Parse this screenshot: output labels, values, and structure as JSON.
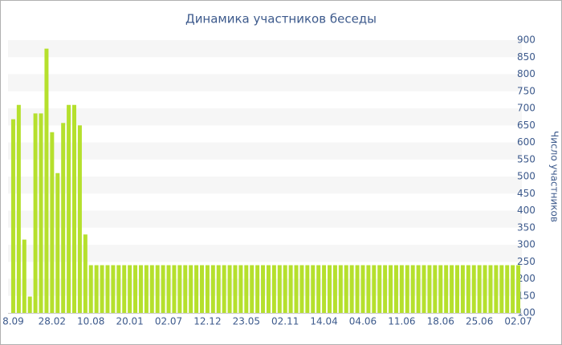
{
  "chart_data": {
    "type": "bar",
    "title": "Динамика участников беседы",
    "y_axis_label": "Число участников",
    "categories": [
      "8.09",
      null,
      null,
      null,
      null,
      null,
      null,
      "28.02",
      null,
      null,
      null,
      null,
      null,
      null,
      "10.08",
      null,
      null,
      null,
      null,
      null,
      null,
      "20.01",
      null,
      null,
      null,
      null,
      null,
      null,
      "02.07",
      null,
      null,
      null,
      null,
      null,
      null,
      "12.12",
      null,
      null,
      null,
      null,
      null,
      null,
      "23.05",
      null,
      null,
      null,
      null,
      null,
      null,
      "02.11",
      null,
      null,
      null,
      null,
      null,
      null,
      "14.04",
      null,
      null,
      null,
      null,
      null,
      null,
      "04.06",
      null,
      null,
      null,
      null,
      null,
      null,
      "11.06",
      null,
      null,
      null,
      null,
      null,
      null,
      "18.06",
      null,
      null,
      null,
      null,
      null,
      null,
      "25.06",
      null,
      null,
      null,
      null,
      null,
      null,
      "02.07"
    ],
    "values": [
      668,
      710,
      315,
      148,
      685,
      685,
      875,
      630,
      510,
      657,
      710,
      710,
      650,
      330,
      240,
      240,
      240,
      240,
      240,
      240,
      240,
      240,
      240,
      240,
      240,
      240,
      240,
      240,
      240,
      240,
      240,
      240,
      240,
      240,
      240,
      240,
      240,
      240,
      240,
      240,
      240,
      240,
      240,
      240,
      240,
      240,
      240,
      240,
      240,
      240,
      240,
      240,
      240,
      240,
      240,
      240,
      240,
      240,
      240,
      240,
      240,
      240,
      240,
      240,
      240,
      240,
      240,
      240,
      240,
      240,
      240,
      240,
      240,
      240,
      240,
      240,
      240,
      240,
      240,
      240,
      240,
      240,
      240,
      240,
      240,
      240,
      240,
      240,
      240,
      240,
      240,
      240
    ],
    "color": "#b5e02d",
    "ylim": [
      100,
      900
    ],
    "yticks": [
      100,
      150,
      200,
      250,
      300,
      350,
      400,
      450,
      500,
      550,
      600,
      650,
      700,
      750,
      800,
      850,
      900
    ],
    "bands": true
  }
}
